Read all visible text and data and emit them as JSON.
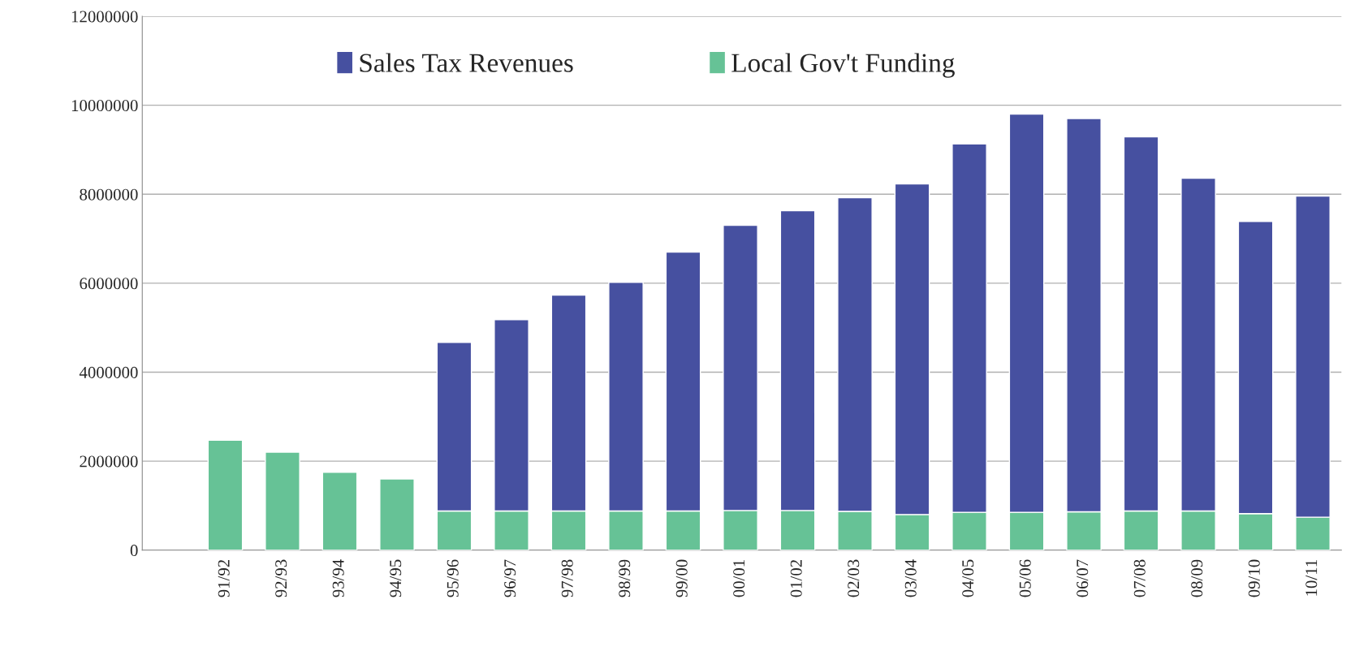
{
  "chart_data": {
    "type": "bar",
    "stacked": true,
    "categories": [
      "91/92",
      "92/93",
      "93/94",
      "94/95",
      "95/96",
      "96/97",
      "97/98",
      "98/99",
      "99/00",
      "00/01",
      "01/02",
      "02/03",
      "03/04",
      "04/05",
      "05/06",
      "06/07",
      "07/08",
      "08/09",
      "09/10",
      "10/11"
    ],
    "series": [
      {
        "name": "Local Gov't Funding",
        "color": "#66c296",
        "values": [
          2470000,
          2200000,
          1750000,
          1600000,
          880000,
          880000,
          880000,
          880000,
          880000,
          890000,
          890000,
          870000,
          800000,
          850000,
          850000,
          860000,
          880000,
          880000,
          820000,
          740000
        ]
      },
      {
        "name": "Sales Tax Revenues",
        "color": "#4650a0",
        "values": [
          null,
          null,
          null,
          null,
          3790000,
          4300000,
          4850000,
          5140000,
          5820000,
          6410000,
          6740000,
          7050000,
          7430000,
          8280000,
          8950000,
          8840000,
          8410000,
          7480000,
          6570000,
          7220000
        ]
      }
    ],
    "ylim": [
      0,
      12000000
    ],
    "yticks": [
      0,
      2000000,
      4000000,
      6000000,
      8000000,
      10000000,
      12000000
    ],
    "grid": "y",
    "legend": "top"
  }
}
